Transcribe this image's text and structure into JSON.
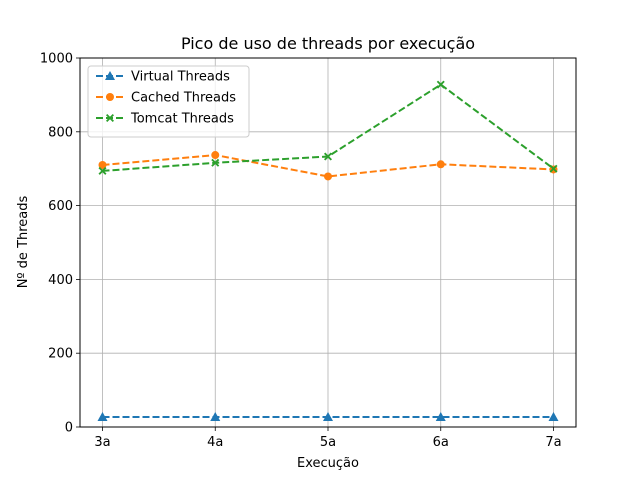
{
  "chart_data": {
    "type": "line",
    "title": "Pico de uso de threads por execução",
    "xlabel": "Execução",
    "ylabel": "Nº de Threads",
    "categories": [
      "3a",
      "4a",
      "5a",
      "6a",
      "7a"
    ],
    "ylim": [
      0,
      1000
    ],
    "yticks": [
      0,
      200,
      400,
      600,
      800,
      1000
    ],
    "grid": true,
    "legend_position": "top-left",
    "series": [
      {
        "name": "Virtual Threads",
        "values": [
          27,
          27,
          27,
          27,
          27
        ],
        "color": "#1f77b4",
        "marker": "triangle",
        "linestyle": "dashed"
      },
      {
        "name": "Cached Threads",
        "values": [
          710,
          737,
          679,
          712,
          698
        ],
        "color": "#ff7f0e",
        "marker": "circle",
        "linestyle": "dashed"
      },
      {
        "name": "Tomcat Threads",
        "values": [
          694,
          716,
          733,
          928,
          700
        ],
        "color": "#2ca02c",
        "marker": "x",
        "linestyle": "dashed"
      }
    ]
  }
}
